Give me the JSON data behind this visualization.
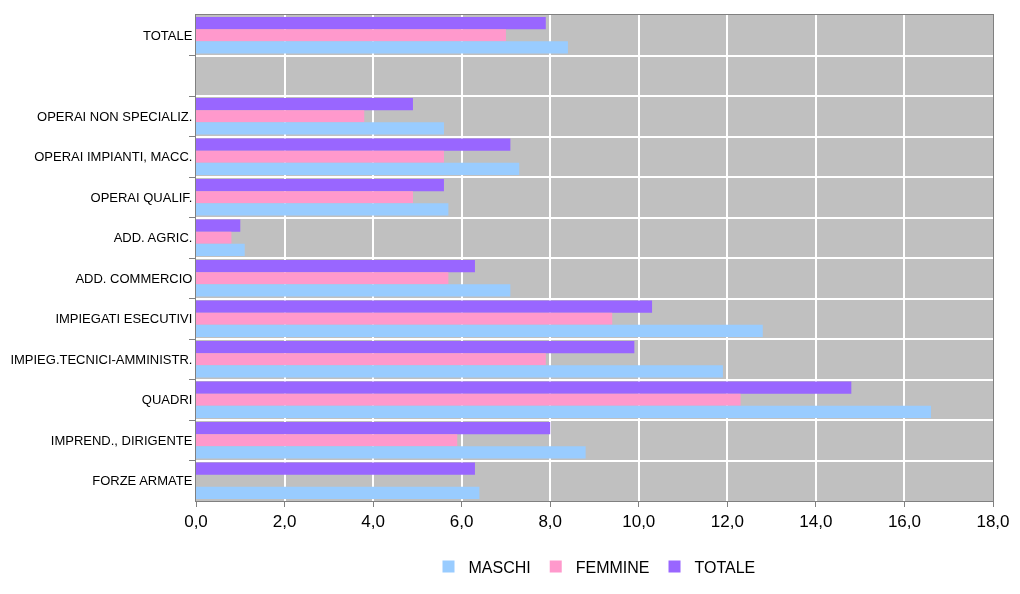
{
  "chart_data": {
    "type": "bar",
    "orientation": "horizontal",
    "categories": [
      "TOTALE",
      null,
      "OPERAI NON SPECIALIZ.",
      "OPERAI IMPIANTI, MACC.",
      "OPERAI QUALIF.",
      "ADD. AGRIC.",
      "ADD. COMMERCIO",
      "IMPIEGATI ESECUTIVI",
      "IMPIEG.TECNICI-AMMINISTR.",
      "QUADRI",
      "IMPREND., DIRIGENTE",
      "FORZE ARMATE"
    ],
    "series": [
      {
        "name": "MASCHI",
        "color": "#99ccff",
        "values": [
          8.4,
          null,
          5.6,
          7.3,
          5.7,
          1.1,
          7.1,
          12.8,
          11.9,
          16.6,
          8.8,
          6.4
        ]
      },
      {
        "name": "FEMMINE",
        "color": "#ff99cc",
        "values": [
          7.0,
          null,
          3.8,
          5.6,
          4.9,
          0.8,
          5.7,
          9.4,
          7.9,
          12.3,
          5.9,
          null
        ]
      },
      {
        "name": "TOTALE",
        "color": "#9966ff",
        "values": [
          7.9,
          null,
          4.9,
          7.1,
          5.6,
          1.0,
          6.3,
          10.3,
          9.9,
          14.8,
          8.0,
          6.3
        ]
      }
    ],
    "xlim": [
      0,
      18
    ],
    "xticks": [
      {
        "value": 0,
        "label": "0,0"
      },
      {
        "value": 2,
        "label": "2,0"
      },
      {
        "value": 4,
        "label": "4,0"
      },
      {
        "value": 6,
        "label": "6,0"
      },
      {
        "value": 8,
        "label": "8,0"
      },
      {
        "value": 10,
        "label": "10,0"
      },
      {
        "value": 12,
        "label": "12,0"
      },
      {
        "value": 14,
        "label": "14,0"
      },
      {
        "value": 16,
        "label": "16,0"
      },
      {
        "value": 18,
        "label": "18,0"
      }
    ],
    "grid": true,
    "legend": "bottom"
  }
}
